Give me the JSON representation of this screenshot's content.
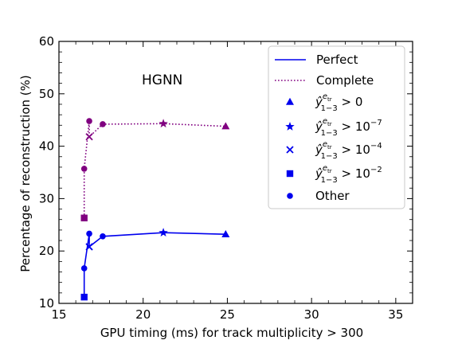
{
  "chart_data": {
    "type": "line",
    "annotation": "HGNN",
    "xlabel": "GPU timing (ms) for track multiplicity > 300",
    "ylabel": "Percentage of reconstruction (%)",
    "xlim": [
      15,
      36
    ],
    "ylim": [
      10,
      60
    ],
    "xticks": [
      15,
      20,
      25,
      30,
      35
    ],
    "yticks": [
      10,
      20,
      30,
      40,
      50,
      60
    ],
    "grid": false,
    "legend_position": "top-right",
    "colors": {
      "perfect": "#0000ee",
      "complete": "#800080"
    },
    "series": [
      {
        "name": "Perfect",
        "style": "solid",
        "points": [
          {
            "x": 16.5,
            "y": 11.2,
            "marker": "square"
          },
          {
            "x": 16.5,
            "y": 16.7,
            "marker": "circle"
          },
          {
            "x": 16.8,
            "y": 23.3,
            "marker": "circle"
          },
          {
            "x": 16.8,
            "y": 20.8,
            "marker": "x"
          },
          {
            "x": 17.6,
            "y": 22.8,
            "marker": "circle"
          },
          {
            "x": 21.2,
            "y": 23.5,
            "marker": "star"
          },
          {
            "x": 24.9,
            "y": 23.2,
            "marker": "triangle"
          }
        ]
      },
      {
        "name": "Complete",
        "style": "dotted",
        "points": [
          {
            "x": 16.5,
            "y": 26.3,
            "marker": "square"
          },
          {
            "x": 16.5,
            "y": 35.7,
            "marker": "circle"
          },
          {
            "x": 16.8,
            "y": 44.8,
            "marker": "circle"
          },
          {
            "x": 16.8,
            "y": 41.8,
            "marker": "x"
          },
          {
            "x": 17.6,
            "y": 44.2,
            "marker": "circle"
          },
          {
            "x": 21.2,
            "y": 44.3,
            "marker": "star"
          },
          {
            "x": 24.9,
            "y": 43.8,
            "marker": "triangle"
          }
        ]
      }
    ],
    "legend": [
      {
        "kind": "line",
        "style": "solid",
        "label": "Perfect"
      },
      {
        "kind": "line",
        "style": "dotted",
        "label": "Complete"
      },
      {
        "kind": "marker",
        "marker": "triangle",
        "label_main": "ŷ",
        "sub": "1−3",
        "sup": "e",
        "supsub": "tr",
        "rel": " > ",
        "base": "0",
        "exp": ""
      },
      {
        "kind": "marker",
        "marker": "star",
        "label_main": "ŷ",
        "sub": "1−3",
        "sup": "e",
        "supsub": "tr",
        "rel": " > ",
        "base": "10",
        "exp": "−7"
      },
      {
        "kind": "marker",
        "marker": "x",
        "label_main": "ŷ",
        "sub": "1−3",
        "sup": "e",
        "supsub": "tr",
        "rel": " > ",
        "base": "10",
        "exp": "−4"
      },
      {
        "kind": "marker",
        "marker": "square",
        "label_main": "ŷ",
        "sub": "1−3",
        "sup": "e",
        "supsub": "tr",
        "rel": " > ",
        "base": "10",
        "exp": "−2"
      },
      {
        "kind": "marker",
        "marker": "circle",
        "label": "Other"
      }
    ]
  }
}
